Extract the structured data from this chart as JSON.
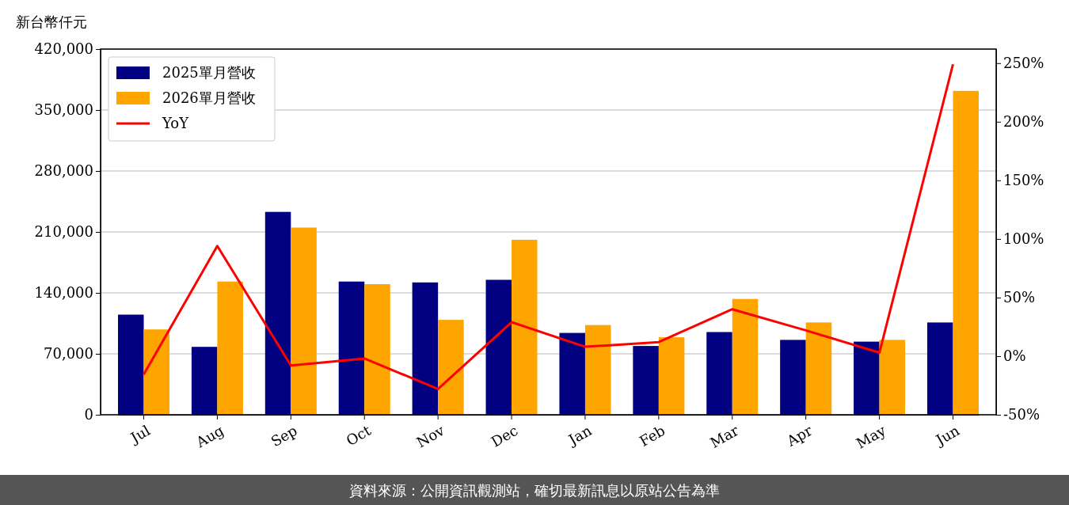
{
  "chart_data": {
    "type": "bar",
    "ylabel": "新台幣仟元",
    "categories": [
      "Jul",
      "Aug",
      "Sep",
      "Oct",
      "Nov",
      "Dec",
      "Jan",
      "Feb",
      "Mar",
      "Apr",
      "May",
      "Jun"
    ],
    "series": [
      {
        "name": "2025單月營收",
        "color": "#000080",
        "values": [
          115000,
          78000,
          233000,
          153000,
          152000,
          155000,
          94000,
          79000,
          95000,
          86000,
          84000,
          106000
        ]
      },
      {
        "name": "2026單月營收",
        "color": "#ffa500",
        "values": [
          98000,
          153000,
          215000,
          150000,
          109000,
          201000,
          103000,
          89000,
          133000,
          106000,
          86000,
          372000
        ]
      },
      {
        "name": "YoY",
        "type": "line",
        "axis": "y2",
        "color": "#ff0000",
        "values": [
          -15.5,
          94,
          -8,
          -2,
          -28,
          29,
          8,
          12,
          40,
          22,
          3,
          249
        ]
      }
    ],
    "ylim": [
      0,
      420000
    ],
    "yticks": [
      {
        "value": 0,
        "label": "0"
      },
      {
        "value": 70000,
        "label": "70,000"
      },
      {
        "value": 140000,
        "label": "140,000"
      },
      {
        "value": 210000,
        "label": "210,000"
      },
      {
        "value": 280000,
        "label": "280,000"
      },
      {
        "value": 350000,
        "label": "350,000"
      },
      {
        "value": 420000,
        "label": "420,000"
      }
    ],
    "y2lim": [
      -50,
      262
    ],
    "y2ticks": [
      {
        "value": -50,
        "label": "-50%"
      },
      {
        "value": 0,
        "label": "0%"
      },
      {
        "value": 50,
        "label": "50%"
      },
      {
        "value": 100,
        "label": "100%"
      },
      {
        "value": 150,
        "label": "150%"
      },
      {
        "value": 200,
        "label": "200%"
      },
      {
        "value": 250,
        "label": "250%"
      }
    ],
    "grid": "y",
    "legend": "top left",
    "marker": "none",
    "line_style": "solid",
    "annotations": [
      "資料來源：公開資訊觀測站，確切最新訊息以原站公告為準"
    ]
  }
}
